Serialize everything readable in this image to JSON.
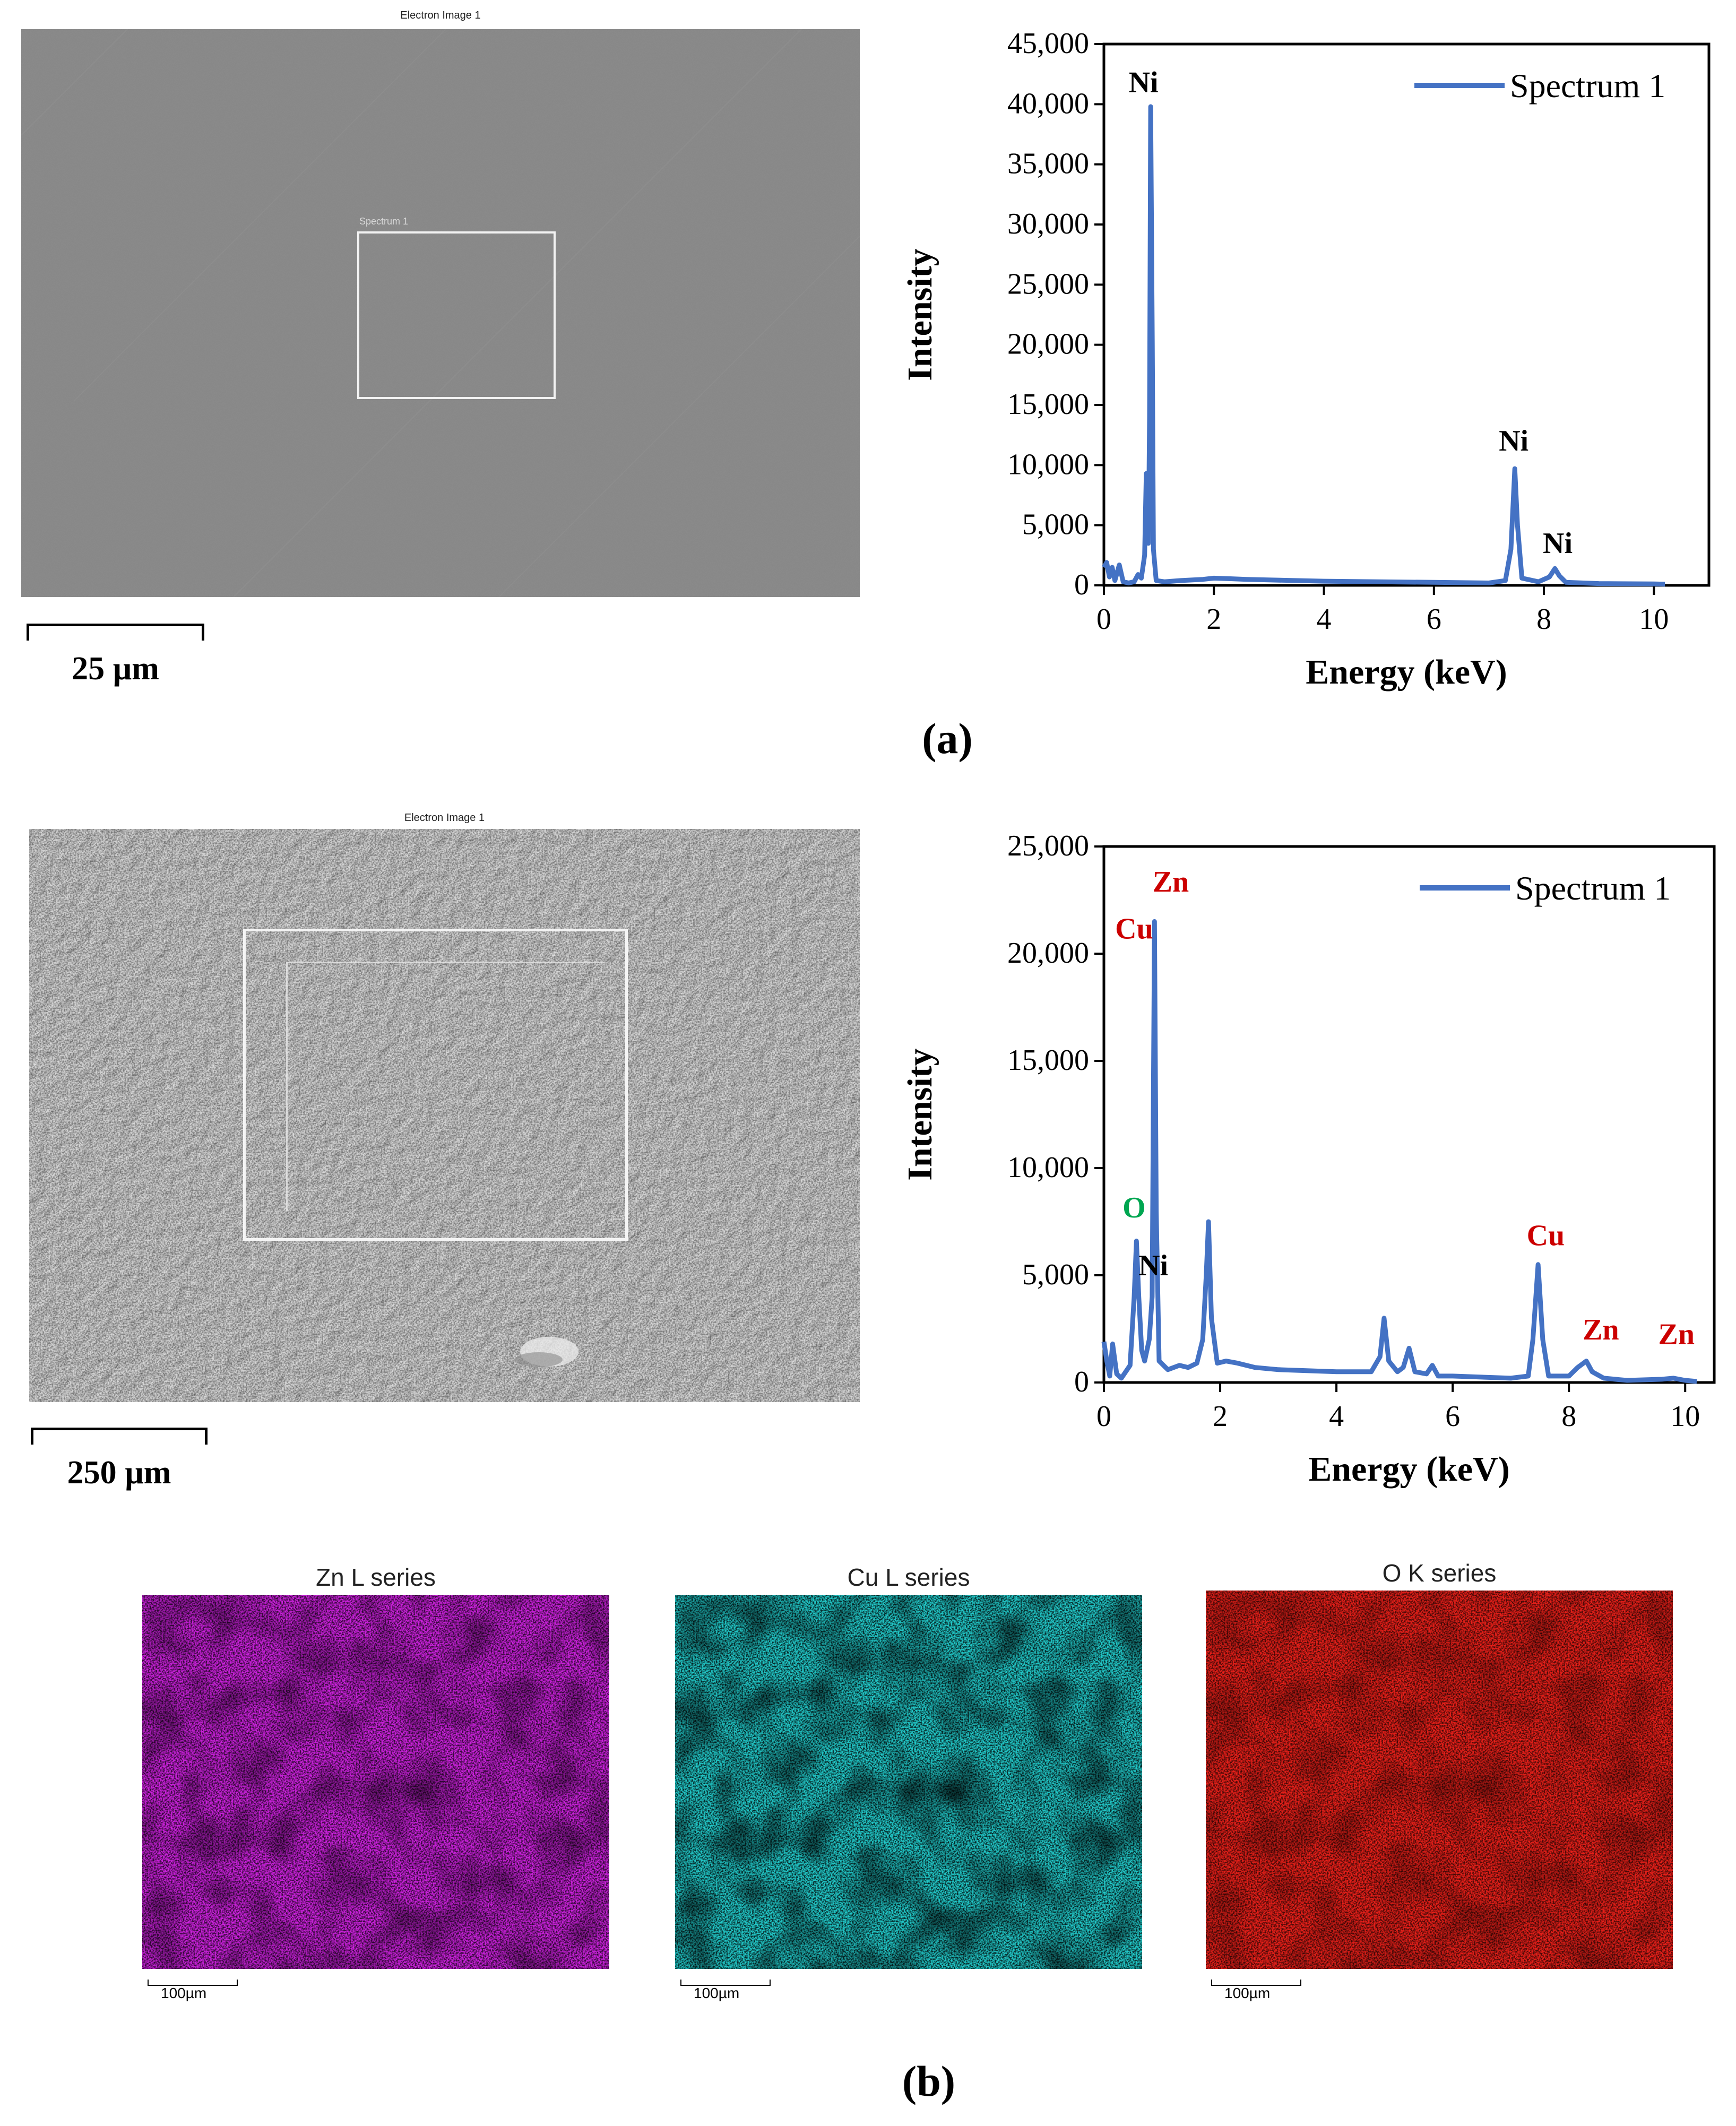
{
  "panel_a": {
    "sem_title": "Electron Image 1",
    "region_label": "Spectrum 1",
    "scale_bar": "25 µm",
    "label": "(a)"
  },
  "panel_b": {
    "sem_title": "Electron Image 1",
    "scale_bar": "250 µm",
    "label": "(b)",
    "maps": [
      {
        "title": "Zn L series",
        "scale": "100µm",
        "color": "#cc22dd"
      },
      {
        "title": "Cu L series",
        "scale": "100µm",
        "color": "#22c8c8"
      },
      {
        "title": "O K series",
        "scale": "100µm",
        "color": "#e8201a"
      }
    ]
  },
  "chart_data": [
    {
      "type": "line",
      "xlabel": "Energy (keV)",
      "ylabel": "Intensity",
      "xlim": [
        0,
        11
      ],
      "ylim": [
        0,
        45000
      ],
      "xticks": [
        0,
        2,
        4,
        6,
        8,
        10
      ],
      "yticks": [
        0,
        5000,
        10000,
        15000,
        20000,
        25000,
        30000,
        35000,
        40000,
        45000
      ],
      "ytick_labels": [
        "0",
        "5,000",
        "10,000",
        "15,000",
        "20,000",
        "25,000",
        "30,000",
        "35,000",
        "40,000",
        "45,000"
      ],
      "legend_position": "top-right",
      "line_color": "#4472c4",
      "series": [
        {
          "name": "Spectrum 1",
          "points": [
            [
              0,
              1500
            ],
            [
              0.05,
              1900
            ],
            [
              0.1,
              700
            ],
            [
              0.15,
              1500
            ],
            [
              0.2,
              400
            ],
            [
              0.28,
              1700
            ],
            [
              0.35,
              300
            ],
            [
              0.45,
              200
            ],
            [
              0.55,
              300
            ],
            [
              0.62,
              900
            ],
            [
              0.68,
              600
            ],
            [
              0.74,
              2500
            ],
            [
              0.77,
              9300
            ],
            [
              0.79,
              8500
            ],
            [
              0.81,
              3500
            ],
            [
              0.83,
              14000
            ],
            [
              0.85,
              39800
            ],
            [
              0.88,
              20000
            ],
            [
              0.9,
              3000
            ],
            [
              0.95,
              400
            ],
            [
              1.1,
              300
            ],
            [
              1.4,
              400
            ],
            [
              1.8,
              500
            ],
            [
              2.0,
              600
            ],
            [
              2.3,
              550
            ],
            [
              2.6,
              500
            ],
            [
              3.0,
              450
            ],
            [
              4.0,
              350
            ],
            [
              5.0,
              300
            ],
            [
              6.0,
              250
            ],
            [
              7.0,
              200
            ],
            [
              7.3,
              400
            ],
            [
              7.4,
              3000
            ],
            [
              7.47,
              9700
            ],
            [
              7.52,
              5000
            ],
            [
              7.6,
              600
            ],
            [
              7.9,
              300
            ],
            [
              8.1,
              700
            ],
            [
              8.2,
              1400
            ],
            [
              8.28,
              800
            ],
            [
              8.4,
              250
            ],
            [
              9.0,
              150
            ],
            [
              10.0,
              120
            ],
            [
              10.2,
              100
            ]
          ]
        }
      ],
      "annotations": [
        {
          "text": "Ni",
          "x": 0.72,
          "y": 41000,
          "color": "#000000"
        },
        {
          "text": "Ni",
          "x": 7.45,
          "y": 11200,
          "color": "#000000"
        },
        {
          "text": "Ni",
          "x": 8.25,
          "y": 2700,
          "color": "#000000"
        }
      ]
    },
    {
      "type": "line",
      "xlabel": "Energy (keV)",
      "ylabel": "Intensity",
      "xlim": [
        0,
        10.5
      ],
      "ylim": [
        0,
        25000
      ],
      "xticks": [
        0,
        2,
        4,
        6,
        8,
        10
      ],
      "yticks": [
        0,
        5000,
        10000,
        15000,
        20000,
        25000
      ],
      "ytick_labels": [
        "0",
        "5,000",
        "10,000",
        "15,000",
        "20,000",
        "25,000"
      ],
      "legend_position": "top-right",
      "line_color": "#4472c4",
      "series": [
        {
          "name": "Spectrum 1",
          "points": [
            [
              0,
              1900
            ],
            [
              0.05,
              1000
            ],
            [
              0.1,
              300
            ],
            [
              0.15,
              1800
            ],
            [
              0.22,
              400
            ],
            [
              0.3,
              200
            ],
            [
              0.45,
              800
            ],
            [
              0.52,
              4000
            ],
            [
              0.56,
              6600
            ],
            [
              0.6,
              4000
            ],
            [
              0.65,
              1500
            ],
            [
              0.7,
              1000
            ],
            [
              0.78,
              2000
            ],
            [
              0.83,
              4000
            ],
            [
              0.87,
              21500
            ],
            [
              0.9,
              8000
            ],
            [
              0.95,
              1000
            ],
            [
              1.1,
              600
            ],
            [
              1.3,
              800
            ],
            [
              1.45,
              700
            ],
            [
              1.6,
              900
            ],
            [
              1.7,
              2000
            ],
            [
              1.76,
              5000
            ],
            [
              1.8,
              7500
            ],
            [
              1.85,
              3000
            ],
            [
              1.95,
              900
            ],
            [
              2.1,
              1000
            ],
            [
              2.3,
              900
            ],
            [
              2.6,
              700
            ],
            [
              3.0,
              600
            ],
            [
              4.0,
              500
            ],
            [
              4.6,
              500
            ],
            [
              4.75,
              1200
            ],
            [
              4.82,
              3000
            ],
            [
              4.9,
              1000
            ],
            [
              5.05,
              500
            ],
            [
              5.15,
              700
            ],
            [
              5.25,
              1600
            ],
            [
              5.35,
              500
            ],
            [
              5.55,
              400
            ],
            [
              5.65,
              800
            ],
            [
              5.75,
              300
            ],
            [
              6.0,
              300
            ],
            [
              6.5,
              250
            ],
            [
              7.0,
              200
            ],
            [
              7.3,
              300
            ],
            [
              7.38,
              2000
            ],
            [
              7.47,
              5500
            ],
            [
              7.55,
              2000
            ],
            [
              7.65,
              300
            ],
            [
              8.0,
              300
            ],
            [
              8.15,
              700
            ],
            [
              8.3,
              1000
            ],
            [
              8.4,
              500
            ],
            [
              8.6,
              200
            ],
            [
              9.0,
              100
            ],
            [
              9.6,
              150
            ],
            [
              9.8,
              200
            ],
            [
              10.0,
              100
            ],
            [
              10.2,
              50
            ]
          ]
        }
      ],
      "annotations": [
        {
          "text": "Zn",
          "x": 1.15,
          "y": 22900,
          "color": "#cc0000"
        },
        {
          "text": "Cu",
          "x": 0.52,
          "y": 20700,
          "color": "#cc0000"
        },
        {
          "text": "O",
          "x": 0.52,
          "y": 7700,
          "color": "#00a651"
        },
        {
          "text": "Ni",
          "x": 0.85,
          "y": 5000,
          "color": "#000000"
        },
        {
          "text": "Cu",
          "x": 7.6,
          "y": 6400,
          "color": "#cc0000"
        },
        {
          "text": "Zn",
          "x": 8.55,
          "y": 2000,
          "color": "#cc0000"
        },
        {
          "text": "Zn",
          "x": 9.85,
          "y": 1800,
          "color": "#cc0000"
        }
      ]
    }
  ]
}
